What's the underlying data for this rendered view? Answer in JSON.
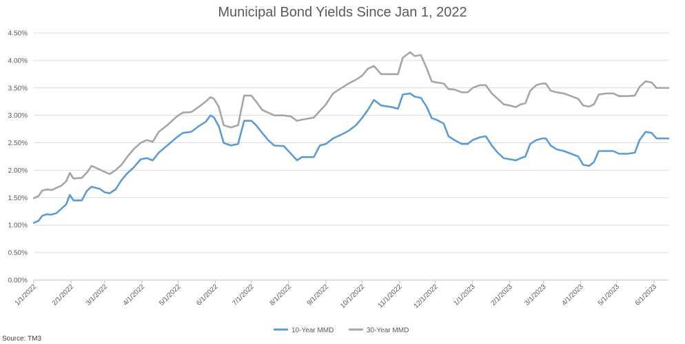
{
  "chart_data": {
    "type": "line",
    "title": "Municipal Bond Yields Since Jan 1, 2022",
    "source": "Source: TM3",
    "ylim": [
      0,
      4.5
    ],
    "y_ticks": [
      "0.00%",
      "0.50%",
      "1.00%",
      "1.50%",
      "2.00%",
      "2.50%",
      "3.00%",
      "3.50%",
      "4.00%",
      "4.50%"
    ],
    "x_ticks": [
      "1/1/2022",
      "2/1/2022",
      "3/1/2022",
      "4/1/2022",
      "5/1/2022",
      "6/1/2022",
      "7/1/2022",
      "8/1/2022",
      "9/1/2022",
      "10/1/2022",
      "11/1/2022",
      "12/1/2022",
      "1/1/2023",
      "2/1/2023",
      "3/1/2023",
      "4/1/2023",
      "5/1/2023",
      "6/1/2023"
    ],
    "grid": "horizontal",
    "legend_position": "bottom",
    "colors": {
      "ten_year": "#5b9bd5",
      "thirty_year": "#a5a5a5",
      "grid": "#d9d9d9",
      "axis": "#bfbfbf"
    },
    "series": [
      {
        "name": "10-Year MMD",
        "color": "#5b9bd5",
        "points": [
          [
            "2022-01-01",
            1.04
          ],
          [
            "2022-01-05",
            1.08
          ],
          [
            "2022-01-08",
            1.17
          ],
          [
            "2022-01-12",
            1.2
          ],
          [
            "2022-01-15",
            1.19
          ],
          [
            "2022-01-20",
            1.22
          ],
          [
            "2022-01-24",
            1.3
          ],
          [
            "2022-01-28",
            1.38
          ],
          [
            "2022-01-31",
            1.55
          ],
          [
            "2022-02-03",
            1.45
          ],
          [
            "2022-02-10",
            1.45
          ],
          [
            "2022-02-14",
            1.62
          ],
          [
            "2022-02-18",
            1.7
          ],
          [
            "2022-02-25",
            1.66
          ],
          [
            "2022-03-01",
            1.6
          ],
          [
            "2022-03-05",
            1.58
          ],
          [
            "2022-03-10",
            1.65
          ],
          [
            "2022-03-15",
            1.82
          ],
          [
            "2022-03-20",
            1.95
          ],
          [
            "2022-03-25",
            2.05
          ],
          [
            "2022-03-31",
            2.2
          ],
          [
            "2022-04-05",
            2.22
          ],
          [
            "2022-04-10",
            2.18
          ],
          [
            "2022-04-15",
            2.32
          ],
          [
            "2022-04-22",
            2.45
          ],
          [
            "2022-04-30",
            2.6
          ],
          [
            "2022-05-05",
            2.68
          ],
          [
            "2022-05-12",
            2.7
          ],
          [
            "2022-05-18",
            2.8
          ],
          [
            "2022-05-24",
            2.88
          ],
          [
            "2022-05-28",
            3.0
          ],
          [
            "2022-05-31",
            2.96
          ],
          [
            "2022-06-04",
            2.8
          ],
          [
            "2022-06-08",
            2.5
          ],
          [
            "2022-06-14",
            2.45
          ],
          [
            "2022-06-20",
            2.48
          ],
          [
            "2022-06-25",
            2.9
          ],
          [
            "2022-07-01",
            2.9
          ],
          [
            "2022-07-05",
            2.82
          ],
          [
            "2022-07-10",
            2.68
          ],
          [
            "2022-07-15",
            2.55
          ],
          [
            "2022-07-20",
            2.45
          ],
          [
            "2022-07-28",
            2.44
          ],
          [
            "2022-08-03",
            2.3
          ],
          [
            "2022-08-08",
            2.18
          ],
          [
            "2022-08-12",
            2.24
          ],
          [
            "2022-08-22",
            2.24
          ],
          [
            "2022-08-27",
            2.45
          ],
          [
            "2022-09-01",
            2.48
          ],
          [
            "2022-09-07",
            2.58
          ],
          [
            "2022-09-14",
            2.65
          ],
          [
            "2022-09-20",
            2.72
          ],
          [
            "2022-09-26",
            2.82
          ],
          [
            "2022-10-01",
            2.95
          ],
          [
            "2022-10-06",
            3.1
          ],
          [
            "2022-10-11",
            3.28
          ],
          [
            "2022-10-17",
            3.18
          ],
          [
            "2022-10-26",
            3.15
          ],
          [
            "2022-10-31",
            3.12
          ],
          [
            "2022-11-04",
            3.38
          ],
          [
            "2022-11-10",
            3.4
          ],
          [
            "2022-11-14",
            3.34
          ],
          [
            "2022-11-19",
            3.32
          ],
          [
            "2022-11-24",
            3.15
          ],
          [
            "2022-11-28",
            2.95
          ],
          [
            "2022-12-02",
            2.92
          ],
          [
            "2022-12-08",
            2.85
          ],
          [
            "2022-12-12",
            2.62
          ],
          [
            "2022-12-17",
            2.55
          ],
          [
            "2022-12-23",
            2.48
          ],
          [
            "2022-12-28",
            2.48
          ],
          [
            "2023-01-01",
            2.55
          ],
          [
            "2023-01-07",
            2.6
          ],
          [
            "2023-01-12",
            2.62
          ],
          [
            "2023-01-17",
            2.45
          ],
          [
            "2023-01-22",
            2.32
          ],
          [
            "2023-01-27",
            2.22
          ],
          [
            "2023-02-01",
            2.2
          ],
          [
            "2023-02-06",
            2.18
          ],
          [
            "2023-02-10",
            2.22
          ],
          [
            "2023-02-14",
            2.25
          ],
          [
            "2023-02-18",
            2.48
          ],
          [
            "2023-02-23",
            2.55
          ],
          [
            "2023-02-28",
            2.58
          ],
          [
            "2023-03-03",
            2.58
          ],
          [
            "2023-03-07",
            2.45
          ],
          [
            "2023-03-12",
            2.38
          ],
          [
            "2023-03-18",
            2.35
          ],
          [
            "2023-03-24",
            2.3
          ],
          [
            "2023-03-30",
            2.25
          ],
          [
            "2023-04-03",
            2.1
          ],
          [
            "2023-04-08",
            2.08
          ],
          [
            "2023-04-12",
            2.15
          ],
          [
            "2023-04-16",
            2.35
          ],
          [
            "2023-04-22",
            2.35
          ],
          [
            "2023-04-28",
            2.35
          ],
          [
            "2023-05-03",
            2.3
          ],
          [
            "2023-05-10",
            2.3
          ],
          [
            "2023-05-16",
            2.32
          ],
          [
            "2023-05-20",
            2.55
          ],
          [
            "2023-05-25",
            2.7
          ],
          [
            "2023-05-30",
            2.68
          ],
          [
            "2023-06-03",
            2.58
          ],
          [
            "2023-06-13",
            2.58
          ]
        ]
      },
      {
        "name": "30-Year MMD",
        "color": "#a5a5a5",
        "points": [
          [
            "2022-01-01",
            1.49
          ],
          [
            "2022-01-05",
            1.53
          ],
          [
            "2022-01-08",
            1.63
          ],
          [
            "2022-01-12",
            1.65
          ],
          [
            "2022-01-16",
            1.64
          ],
          [
            "2022-01-20",
            1.68
          ],
          [
            "2022-01-24",
            1.72
          ],
          [
            "2022-01-28",
            1.8
          ],
          [
            "2022-01-31",
            1.95
          ],
          [
            "2022-02-03",
            1.85
          ],
          [
            "2022-02-10",
            1.86
          ],
          [
            "2022-02-15",
            1.98
          ],
          [
            "2022-02-18",
            2.08
          ],
          [
            "2022-02-25",
            2.01
          ],
          [
            "2022-03-01",
            1.97
          ],
          [
            "2022-03-05",
            1.93
          ],
          [
            "2022-03-10",
            2.0
          ],
          [
            "2022-03-15",
            2.1
          ],
          [
            "2022-03-20",
            2.25
          ],
          [
            "2022-03-25",
            2.38
          ],
          [
            "2022-03-31",
            2.5
          ],
          [
            "2022-04-05",
            2.55
          ],
          [
            "2022-04-10",
            2.52
          ],
          [
            "2022-04-15",
            2.7
          ],
          [
            "2022-04-22",
            2.82
          ],
          [
            "2022-04-30",
            2.98
          ],
          [
            "2022-05-05",
            3.05
          ],
          [
            "2022-05-12",
            3.06
          ],
          [
            "2022-05-18",
            3.15
          ],
          [
            "2022-05-24",
            3.25
          ],
          [
            "2022-05-28",
            3.33
          ],
          [
            "2022-05-31",
            3.3
          ],
          [
            "2022-06-04",
            3.15
          ],
          [
            "2022-06-08",
            2.82
          ],
          [
            "2022-06-14",
            2.78
          ],
          [
            "2022-06-20",
            2.82
          ],
          [
            "2022-06-25",
            3.36
          ],
          [
            "2022-07-01",
            3.36
          ],
          [
            "2022-07-05",
            3.25
          ],
          [
            "2022-07-10",
            3.1
          ],
          [
            "2022-07-15",
            3.05
          ],
          [
            "2022-07-20",
            3.0
          ],
          [
            "2022-07-28",
            3.0
          ],
          [
            "2022-08-03",
            2.98
          ],
          [
            "2022-08-08",
            2.9
          ],
          [
            "2022-08-12",
            2.92
          ],
          [
            "2022-08-22",
            2.96
          ],
          [
            "2022-08-27",
            3.08
          ],
          [
            "2022-09-01",
            3.2
          ],
          [
            "2022-09-07",
            3.4
          ],
          [
            "2022-09-14",
            3.5
          ],
          [
            "2022-09-20",
            3.58
          ],
          [
            "2022-09-26",
            3.65
          ],
          [
            "2022-10-01",
            3.72
          ],
          [
            "2022-10-06",
            3.85
          ],
          [
            "2022-10-11",
            3.9
          ],
          [
            "2022-10-17",
            3.75
          ],
          [
            "2022-10-26",
            3.75
          ],
          [
            "2022-10-31",
            3.75
          ],
          [
            "2022-11-04",
            4.05
          ],
          [
            "2022-11-10",
            4.15
          ],
          [
            "2022-11-14",
            4.08
          ],
          [
            "2022-11-19",
            4.1
          ],
          [
            "2022-11-24",
            3.85
          ],
          [
            "2022-11-28",
            3.62
          ],
          [
            "2022-12-02",
            3.6
          ],
          [
            "2022-12-08",
            3.58
          ],
          [
            "2022-12-12",
            3.48
          ],
          [
            "2022-12-17",
            3.47
          ],
          [
            "2022-12-23",
            3.42
          ],
          [
            "2022-12-28",
            3.42
          ],
          [
            "2023-01-01",
            3.5
          ],
          [
            "2023-01-07",
            3.55
          ],
          [
            "2023-01-12",
            3.55
          ],
          [
            "2023-01-17",
            3.4
          ],
          [
            "2023-01-22",
            3.3
          ],
          [
            "2023-01-27",
            3.2
          ],
          [
            "2023-02-01",
            3.18
          ],
          [
            "2023-02-06",
            3.15
          ],
          [
            "2023-02-10",
            3.2
          ],
          [
            "2023-02-14",
            3.22
          ],
          [
            "2023-02-18",
            3.45
          ],
          [
            "2023-02-23",
            3.55
          ],
          [
            "2023-02-28",
            3.58
          ],
          [
            "2023-03-03",
            3.58
          ],
          [
            "2023-03-07",
            3.45
          ],
          [
            "2023-03-12",
            3.42
          ],
          [
            "2023-03-18",
            3.4
          ],
          [
            "2023-03-24",
            3.35
          ],
          [
            "2023-03-30",
            3.3
          ],
          [
            "2023-04-03",
            3.18
          ],
          [
            "2023-04-08",
            3.16
          ],
          [
            "2023-04-12",
            3.2
          ],
          [
            "2023-04-16",
            3.38
          ],
          [
            "2023-04-22",
            3.4
          ],
          [
            "2023-04-28",
            3.4
          ],
          [
            "2023-05-03",
            3.35
          ],
          [
            "2023-05-10",
            3.35
          ],
          [
            "2023-05-16",
            3.36
          ],
          [
            "2023-05-20",
            3.52
          ],
          [
            "2023-05-25",
            3.62
          ],
          [
            "2023-05-30",
            3.6
          ],
          [
            "2023-06-03",
            3.5
          ],
          [
            "2023-06-13",
            3.5
          ]
        ]
      }
    ]
  }
}
